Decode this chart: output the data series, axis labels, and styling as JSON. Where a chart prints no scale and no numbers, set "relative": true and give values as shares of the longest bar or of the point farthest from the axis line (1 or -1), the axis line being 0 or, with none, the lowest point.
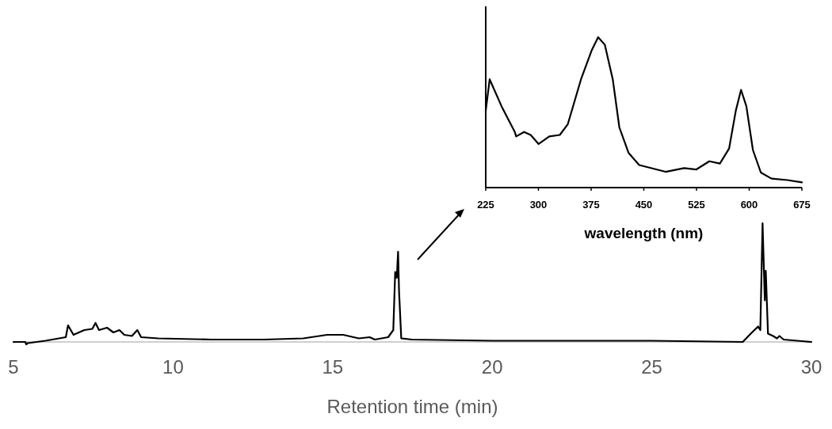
{
  "chart_data": [
    {
      "type": "line",
      "xlabel": "Retention time (min)",
      "xlim": [
        5,
        30
      ],
      "xticks": [
        5,
        10,
        15,
        20,
        25,
        30
      ],
      "relative": true,
      "tick_labels": "x",
      "series": [
        {
          "color": "#000000",
          "x": [
            5.0,
            5.37,
            5.4,
            5.45,
            6.0,
            6.64,
            6.71,
            6.88,
            7.22,
            7.47,
            7.57,
            7.68,
            7.93,
            8.13,
            8.32,
            8.47,
            8.71,
            8.88,
            9.0,
            9.54,
            11.2,
            12.85,
            14.08,
            14.83,
            15.33,
            15.82,
            16.16,
            16.32,
            16.74,
            16.9,
            16.96,
            17.01,
            17.05,
            17.08,
            17.15,
            17.48,
            20,
            22,
            25,
            27.85,
            28.1,
            28.33,
            28.4,
            28.47,
            28.54,
            28.57,
            28.64,
            28.8,
            28.92,
            29.0,
            29.13,
            30.0
          ],
          "values": [
            0,
            0,
            -0.02,
            -0.01,
            0.01,
            0.04,
            0.14,
            0.06,
            0.1,
            0.11,
            0.16,
            0.1,
            0.12,
            0.08,
            0.1,
            0.06,
            0.05,
            0.1,
            0.04,
            0.03,
            0.02,
            0.02,
            0.03,
            0.06,
            0.06,
            0.03,
            0.04,
            0.02,
            0.04,
            0.1,
            0.59,
            0.54,
            0.76,
            0.43,
            0.03,
            0.02,
            0.01,
            0.01,
            0.01,
            0,
            0.07,
            0.13,
            0.1,
            1.0,
            0.35,
            0.6,
            0.07,
            0.05,
            0.03,
            0.05,
            0.02,
            0
          ]
        }
      ]
    },
    {
      "type": "line",
      "xlabel": "wavelength (nm)",
      "xlim": [
        225,
        675
      ],
      "xticks": [
        225,
        300,
        375,
        450,
        525,
        600,
        675
      ],
      "relative": true,
      "tick_labels": "x",
      "series": [
        {
          "color": "#000000",
          "x": [
            225,
            230.6,
            247.6,
            266.4,
            268.3,
            279.6,
            289,
            300.3,
            315.4,
            330.4,
            341.7,
            360.6,
            375.6,
            385,
            394.5,
            405.8,
            415.2,
            428.4,
            443.4,
            481,
            507.4,
            524.4,
            543.2,
            558.3,
            571.4,
            580.9,
            588.4,
            596,
            605.3,
            616.6,
            631.7,
            654.3,
            675
          ],
          "values": [
            0.51,
            0.72,
            0.54,
            0.37,
            0.34,
            0.37,
            0.35,
            0.29,
            0.34,
            0.35,
            0.42,
            0.72,
            0.91,
            1.0,
            0.95,
            0.72,
            0.4,
            0.23,
            0.15,
            0.105,
            0.13,
            0.12,
            0.175,
            0.16,
            0.26,
            0.51,
            0.65,
            0.54,
            0.25,
            0.1,
            0.06,
            0.05,
            0.035
          ]
        }
      ]
    }
  ]
}
